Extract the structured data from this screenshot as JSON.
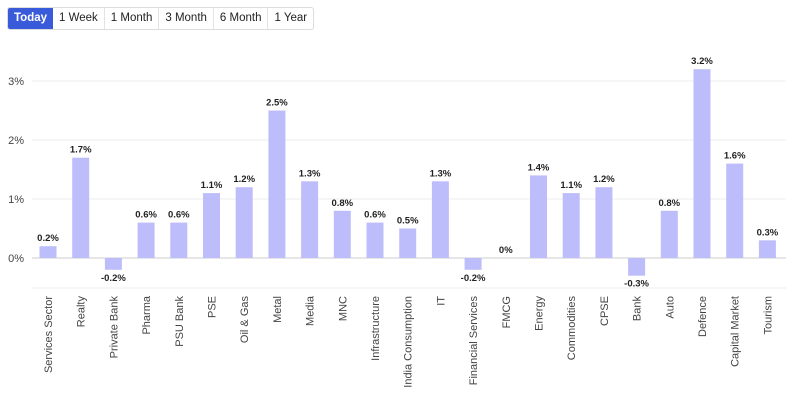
{
  "timeframe_tabs": [
    {
      "label": "Today",
      "active": true
    },
    {
      "label": "1 Week",
      "active": false
    },
    {
      "label": "1 Month",
      "active": false
    },
    {
      "label": "3 Month",
      "active": false
    },
    {
      "label": "6 Month",
      "active": false
    },
    {
      "label": "1 Year",
      "active": false
    }
  ],
  "colors": {
    "bar": "#bdbdfb",
    "tab_active": "#3a5bd9",
    "grid": "#ececec",
    "zero_line": "#cccccc"
  },
  "chart_data": {
    "type": "bar",
    "categories": [
      "Services Sector",
      "Realty",
      "Private Bank",
      "Pharma",
      "PSU Bank",
      "PSE",
      "Oil & Gas",
      "Metal",
      "Media",
      "MNC",
      "Infrastructure",
      "India Consumption",
      "IT",
      "Financial Services",
      "FMCG",
      "Energy",
      "Commodities",
      "CPSE",
      "Bank",
      "Auto",
      "Defence",
      "Capital Market",
      "Tourism"
    ],
    "values": [
      0.2,
      1.7,
      -0.2,
      0.6,
      0.6,
      1.1,
      1.2,
      2.5,
      1.3,
      0.8,
      0.6,
      0.5,
      1.3,
      -0.2,
      0,
      1.4,
      1.1,
      1.2,
      -0.3,
      0.8,
      3.2,
      1.6,
      0.3
    ],
    "data_labels": [
      "0.2%",
      "1.7%",
      "-0.2%",
      "0.6%",
      "0.6%",
      "1.1%",
      "1.2%",
      "2.5%",
      "1.3%",
      "0.8%",
      "0.6%",
      "0.5%",
      "1.3%",
      "-0.2%",
      "0%",
      "1.4%",
      "1.1%",
      "1.2%",
      "-0.3%",
      "0.8%",
      "3.2%",
      "1.6%",
      "0.3%"
    ],
    "yticks": [
      0,
      1,
      2,
      3
    ],
    "ytick_labels": [
      "0%",
      "1%",
      "2%",
      "3%"
    ],
    "ylim": [
      -0.5,
      3.4
    ],
    "grid": true,
    "xlabel": "",
    "ylabel": ""
  }
}
